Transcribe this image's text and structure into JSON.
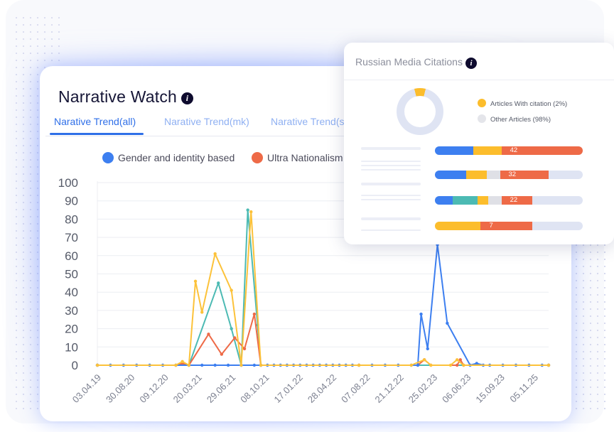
{
  "main": {
    "title": "Narrative Watch",
    "tabs": [
      {
        "label": "Narative Trend(all)",
        "active": true
      },
      {
        "label": "Narative Trend(mk)",
        "active": false
      },
      {
        "label": "Narative Trend(s",
        "active": false
      }
    ]
  },
  "icons": {
    "info": "info-icon"
  },
  "colors": {
    "blue": "#3d7ff0",
    "teal": "#4cbab3",
    "orange": "#ee6a47",
    "yellow": "#fcc23a",
    "accent": "#2f6fe8"
  },
  "chart_data": {
    "type": "line",
    "series": [
      {
        "name": "Gender and identity based",
        "color": "#3d7ff0",
        "points": [
          [
            0,
            0
          ],
          [
            2,
            0
          ],
          [
            4,
            0
          ],
          [
            6,
            0
          ],
          [
            8,
            0
          ],
          [
            10,
            0
          ],
          [
            12,
            0
          ],
          [
            14,
            0
          ],
          [
            16,
            0
          ],
          [
            18,
            0
          ],
          [
            20,
            0
          ],
          [
            22,
            0
          ],
          [
            24,
            0
          ],
          [
            25,
            0
          ],
          [
            26,
            0
          ],
          [
            27,
            0
          ],
          [
            28,
            0
          ],
          [
            29,
            0
          ],
          [
            30,
            0
          ],
          [
            31,
            0
          ],
          [
            32,
            0
          ],
          [
            33,
            0
          ],
          [
            34,
            0
          ],
          [
            35,
            0
          ],
          [
            36,
            0
          ],
          [
            37,
            0
          ],
          [
            38,
            0
          ],
          [
            39,
            0
          ],
          [
            40,
            0
          ],
          [
            42,
            0
          ],
          [
            44,
            0
          ],
          [
            46,
            0
          ],
          [
            48,
            0
          ],
          [
            49,
            0
          ],
          [
            49.5,
            28
          ],
          [
            50.5,
            9
          ],
          [
            52,
            66
          ],
          [
            53.5,
            23
          ],
          [
            57,
            0
          ],
          [
            58,
            1
          ],
          [
            59,
            0
          ],
          [
            60,
            0
          ],
          [
            62,
            0
          ],
          [
            64,
            0
          ],
          [
            66,
            0
          ],
          [
            68,
            0
          ],
          [
            69,
            0
          ]
        ]
      },
      {
        "name": "Ultra Nationalism",
        "color": "#ee6a47",
        "points": [
          [
            0,
            0
          ],
          [
            12,
            0
          ],
          [
            13,
            1
          ],
          [
            14,
            0
          ],
          [
            17,
            17
          ],
          [
            19,
            6
          ],
          [
            21,
            15
          ],
          [
            22.5,
            9
          ],
          [
            24,
            28
          ],
          [
            25,
            0
          ],
          [
            40,
            0
          ],
          [
            49,
            0
          ],
          [
            50,
            3
          ],
          [
            51,
            0
          ],
          [
            55,
            0
          ],
          [
            55.5,
            3
          ],
          [
            56,
            0
          ],
          [
            69,
            0
          ]
        ]
      },
      {
        "name": "",
        "color": "#4cbab3",
        "points": [
          [
            0,
            0
          ],
          [
            14,
            0
          ],
          [
            18.5,
            45
          ],
          [
            20.5,
            20
          ],
          [
            22,
            0
          ],
          [
            23,
            85
          ],
          [
            24.5,
            22
          ],
          [
            25,
            0
          ],
          [
            69,
            0
          ]
        ]
      },
      {
        "name": "",
        "color": "#fcc23a",
        "points": [
          [
            0,
            0
          ],
          [
            12,
            0
          ],
          [
            13,
            2
          ],
          [
            14,
            0
          ],
          [
            15,
            46
          ],
          [
            16,
            29
          ],
          [
            18,
            61
          ],
          [
            20.5,
            41
          ],
          [
            22,
            0
          ],
          [
            23.5,
            84
          ],
          [
            25,
            0
          ],
          [
            40,
            0
          ],
          [
            48,
            0
          ],
          [
            50,
            3
          ],
          [
            51,
            0
          ],
          [
            54,
            0
          ],
          [
            55,
            3
          ],
          [
            56,
            0
          ],
          [
            69,
            0
          ]
        ]
      }
    ],
    "x_tick_labels": [
      "03.04.19",
      "30.08.20",
      "09.12.20",
      "20.03.21",
      "29.06.21",
      "08.10.21",
      "17.01.22",
      "28.04.22",
      "07.08.22",
      "21.12.22",
      "25.02.23",
      "06.06.23",
      "15.09.23",
      "05.11.25"
    ],
    "y_ticks": [
      0,
      10,
      20,
      30,
      40,
      50,
      60,
      70,
      80,
      90,
      100
    ],
    "ylim": [
      0,
      100
    ],
    "xlim": [
      0,
      69
    ],
    "grid": true,
    "legend_placement": "top"
  },
  "popup": {
    "title": "Russian Media Citations",
    "donut": {
      "with_citation_pct": 2,
      "other_pct": 98
    },
    "legend": [
      {
        "label": "Articles With citation (2%)",
        "color": "#fcbd2c"
      },
      {
        "label": "Other Articles (98%)",
        "color": "#e4e5ea"
      }
    ],
    "bars": [
      {
        "value": "42",
        "fill": 1.0,
        "segments": [
          {
            "color": "#3d7ff0",
            "frac": 0.26
          },
          {
            "color": "#fcbd2c",
            "frac": 0.19
          },
          {
            "color": "#ee6a47",
            "frac": 0.55
          }
        ]
      },
      {
        "value": "32",
        "fill": 0.77,
        "segments": [
          {
            "color": "#3d7ff0",
            "frac": 0.21
          },
          {
            "color": "#fcbd2c",
            "frac": 0.14
          },
          {
            "color": "#dfe0e6",
            "frac": 0.09
          },
          {
            "color": "#ee6a47",
            "frac": 0.33
          }
        ]
      },
      {
        "value": "22",
        "fill": 0.66,
        "segments": [
          {
            "color": "#3d7ff0",
            "frac": 0.12
          },
          {
            "color": "#4cbab3",
            "frac": 0.17
          },
          {
            "color": "#fcbd2c",
            "frac": 0.07
          },
          {
            "color": "#dfe0e6",
            "frac": 0.09
          },
          {
            "color": "#ee6a47",
            "frac": 0.21
          }
        ]
      },
      {
        "value": "7",
        "fill": 0.66,
        "segments": [
          {
            "color": "#fcbd2c",
            "frac": 0.31
          },
          {
            "color": "#ee6a47",
            "frac": 0.35
          }
        ]
      }
    ]
  }
}
